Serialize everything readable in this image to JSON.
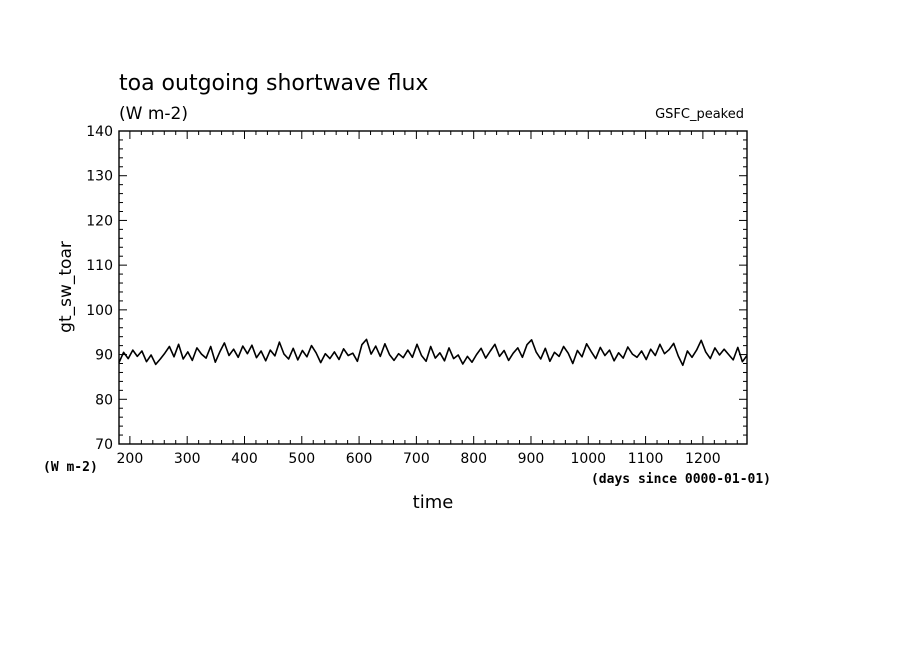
{
  "chart_data": {
    "type": "line",
    "title": "toa outgoing shortwave flux",
    "subtitle": "(W m-2)",
    "annotation": "GSFC_peaked",
    "xlabel": "time",
    "x_unit_label": "(days since 0000-01-01)",
    "ylabel": "gt_sw_toar",
    "y_unit_label": "(W m-2)",
    "xlim": [
      181,
      1277
    ],
    "ylim": [
      70,
      140
    ],
    "x_ticks": [
      200,
      300,
      400,
      500,
      600,
      700,
      800,
      900,
      1000,
      1100,
      1200
    ],
    "y_ticks": [
      70,
      80,
      90,
      100,
      110,
      120,
      130,
      140
    ],
    "grid": false,
    "line_color": "#000000",
    "series": [
      {
        "x": [
          181,
          189,
          197,
          205,
          213,
          221,
          229,
          237,
          245,
          253,
          261,
          269,
          277,
          285,
          293,
          301,
          309,
          317,
          325,
          333,
          341,
          349,
          357,
          365,
          373,
          381,
          389,
          397,
          405,
          413,
          421,
          429,
          437,
          445,
          453,
          461,
          469,
          477,
          485,
          493,
          501,
          509,
          517,
          525,
          533,
          541,
          549,
          557,
          565,
          573,
          581,
          589,
          597,
          605,
          613,
          621,
          629,
          637,
          645,
          653,
          661,
          669,
          677,
          685,
          693,
          701,
          709,
          717,
          725,
          733,
          741,
          749,
          757,
          765,
          773,
          781,
          789,
          797,
          805,
          813,
          821,
          829,
          837,
          845,
          853,
          861,
          869,
          877,
          885,
          893,
          901,
          909,
          917,
          925,
          933,
          941,
          949,
          957,
          965,
          973,
          981,
          989,
          997,
          1005,
          1013,
          1021,
          1029,
          1037,
          1045,
          1053,
          1061,
          1069,
          1077,
          1085,
          1093,
          1101,
          1109,
          1117,
          1125,
          1133,
          1141,
          1149,
          1157,
          1165,
          1173,
          1181,
          1189,
          1197,
          1205,
          1213,
          1221,
          1229,
          1237,
          1245,
          1253,
          1261,
          1269,
          1277
        ],
        "y": [
          88.2,
          90.5,
          89.1,
          91.0,
          89.6,
          90.8,
          88.4,
          89.9,
          87.8,
          89.0,
          90.3,
          91.8,
          89.5,
          92.3,
          89.0,
          90.6,
          88.7,
          91.5,
          90.1,
          89.2,
          91.8,
          88.3,
          90.6,
          92.6,
          89.8,
          91.2,
          89.4,
          91.9,
          90.2,
          92.1,
          89.3,
          90.8,
          88.6,
          91.0,
          89.7,
          92.8,
          90.1,
          89.0,
          91.4,
          88.8,
          90.9,
          89.5,
          92.0,
          90.4,
          88.2,
          90.2,
          89.1,
          90.6,
          88.9,
          91.3,
          89.8,
          90.3,
          88.5,
          92.2,
          93.4,
          90.1,
          91.9,
          89.6,
          92.4,
          90.0,
          88.7,
          90.2,
          89.3,
          91.0,
          89.4,
          92.3,
          89.8,
          88.5,
          91.8,
          89.2,
          90.4,
          88.6,
          91.5,
          89.1,
          89.9,
          87.9,
          89.6,
          88.3,
          90.0,
          91.4,
          89.2,
          90.8,
          92.3,
          89.6,
          90.9,
          88.7,
          90.3,
          91.5,
          89.4,
          92.2,
          93.3,
          90.6,
          89.0,
          91.4,
          88.5,
          90.5,
          89.6,
          91.8,
          90.3,
          88.0,
          90.9,
          89.5,
          92.4,
          90.7,
          89.1,
          91.6,
          89.8,
          91.0,
          88.6,
          90.4,
          89.2,
          91.7,
          90.1,
          89.4,
          90.8,
          88.9,
          91.2,
          89.8,
          92.3,
          90.2,
          91.1,
          92.5,
          89.7,
          87.6,
          90.8,
          89.4,
          91.0,
          93.2,
          90.6,
          89.1,
          91.5,
          89.9,
          91.2,
          90.0,
          88.8,
          91.6,
          88.4,
          89.8
        ]
      }
    ]
  }
}
